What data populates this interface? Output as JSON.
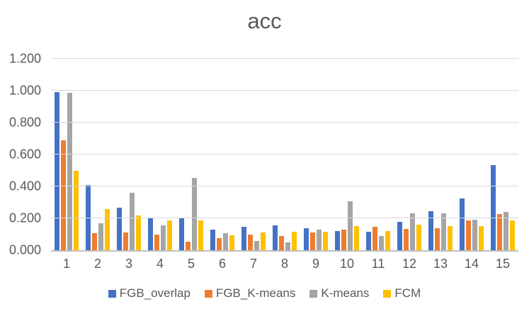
{
  "chart_data": {
    "type": "bar",
    "title": "acc",
    "categories": [
      "1",
      "2",
      "3",
      "4",
      "5",
      "6",
      "7",
      "8",
      "9",
      "10",
      "11",
      "12",
      "13",
      "14",
      "15"
    ],
    "series": [
      {
        "name": "FGB_overlap",
        "color": "#4472C4",
        "values": [
          0.99,
          0.41,
          0.265,
          0.2,
          0.2,
          0.13,
          0.145,
          0.155,
          0.14,
          0.12,
          0.115,
          0.18,
          0.245,
          0.325,
          0.535
        ]
      },
      {
        "name": "FGB_K-means",
        "color": "#ED7D31",
        "values": [
          0.69,
          0.105,
          0.11,
          0.1,
          0.055,
          0.075,
          0.1,
          0.09,
          0.11,
          0.13,
          0.145,
          0.135,
          0.14,
          0.185,
          0.225
        ]
      },
      {
        "name": "K-means",
        "color": "#A5A5A5",
        "values": [
          0.985,
          0.17,
          0.36,
          0.155,
          0.455,
          0.105,
          0.06,
          0.05,
          0.13,
          0.305,
          0.09,
          0.23,
          0.23,
          0.19,
          0.24
        ]
      },
      {
        "name": "FCM",
        "color": "#FFC000",
        "values": [
          0.5,
          0.26,
          0.22,
          0.185,
          0.185,
          0.095,
          0.11,
          0.115,
          0.115,
          0.15,
          0.12,
          0.16,
          0.15,
          0.15,
          0.185
        ]
      }
    ],
    "xlabel": "",
    "ylabel": "",
    "ylim": [
      0,
      1.2
    ],
    "ytick_step": 0.2,
    "ytick_labels": [
      "0.000",
      "0.200",
      "0.400",
      "0.600",
      "0.800",
      "1.000",
      "1.200"
    ],
    "grid": true,
    "legend_position": "bottom"
  },
  "colors": {
    "background": "#FFFFFF",
    "title_text": "#595959",
    "axis_text": "#595959",
    "gridline": "#D9D9D9",
    "axis_line": "#BFBFBF"
  }
}
